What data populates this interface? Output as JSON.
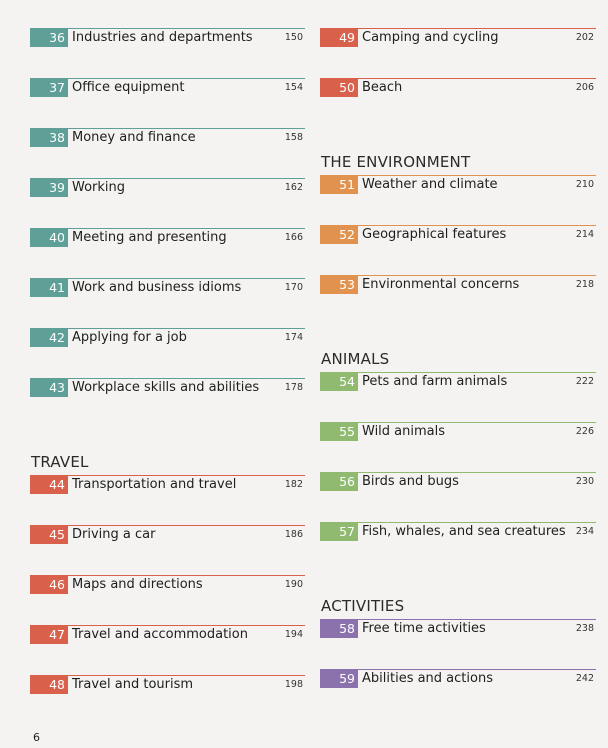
{
  "columns": [
    {
      "groups": [
        {
          "color": "#5e9f98",
          "entries": [
            {
              "number": 36,
              "title": "Industries and departments",
              "page": 150
            },
            {
              "number": 37,
              "title": "Office equipment",
              "page": 154
            },
            {
              "number": 38,
              "title": "Money and finance",
              "page": 158
            },
            {
              "number": 39,
              "title": "Working",
              "page": 162
            },
            {
              "number": 40,
              "title": "Meeting and presenting",
              "page": 166
            },
            {
              "number": 41,
              "title": "Work and business idioms",
              "page": 170
            },
            {
              "number": 42,
              "title": "Applying for a job",
              "page": 174
            },
            {
              "number": 43,
              "title": "Workplace skills and abilities",
              "page": 178
            }
          ]
        },
        {
          "heading": "TRAVEL",
          "color": "#d9604b",
          "entries": [
            {
              "number": 44,
              "title": "Transportation and travel",
              "page": 182
            },
            {
              "number": 45,
              "title": "Driving a car",
              "page": 186
            },
            {
              "number": 46,
              "title": "Maps and directions",
              "page": 190
            },
            {
              "number": 47,
              "title": "Travel and accommodation",
              "page": 194
            },
            {
              "number": 48,
              "title": "Travel and tourism",
              "page": 198
            }
          ]
        }
      ]
    },
    {
      "groups": [
        {
          "color": "#d9604b",
          "entries": [
            {
              "number": 49,
              "title": "Camping and cycling",
              "page": 202
            },
            {
              "number": 50,
              "title": "Beach",
              "page": 206
            }
          ]
        },
        {
          "heading": "THE ENVIRONMENT",
          "color": "#e1924f",
          "entries": [
            {
              "number": 51,
              "title": "Weather and climate",
              "page": 210
            },
            {
              "number": 52,
              "title": "Geographical features",
              "page": 214
            },
            {
              "number": 53,
              "title": "Environmental concerns",
              "page": 218
            }
          ]
        },
        {
          "heading": "ANIMALS",
          "color": "#8fba6f",
          "entries": [
            {
              "number": 54,
              "title": "Pets and farm animals",
              "page": 222
            },
            {
              "number": 55,
              "title": "Wild animals",
              "page": 226
            },
            {
              "number": 56,
              "title": "Birds and bugs",
              "page": 230
            },
            {
              "number": 57,
              "title": "Fish, whales, and sea creatures",
              "page": 234
            }
          ]
        },
        {
          "heading": "ACTIVITIES",
          "color": "#8c72ad",
          "entries": [
            {
              "number": 58,
              "title": "Free time activities",
              "page": 238
            },
            {
              "number": 59,
              "title": "Abilities and actions",
              "page": 242
            }
          ]
        }
      ]
    }
  ],
  "folio": 6
}
